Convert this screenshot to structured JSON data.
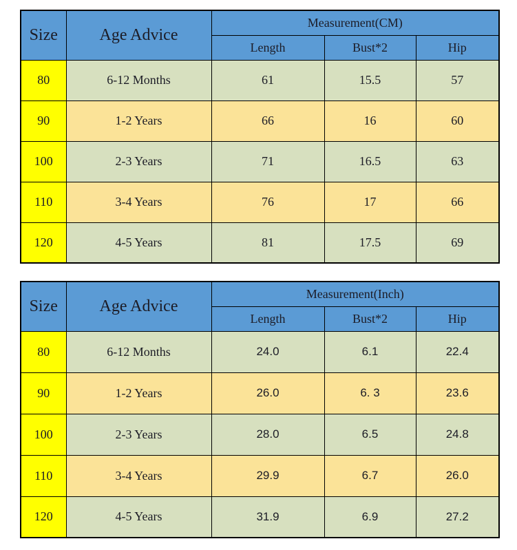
{
  "colors": {
    "header_blue": "#5b9bd5",
    "row_green": "#d7e0bf",
    "row_yellow": "#fbe398",
    "size_column_yellow": "#ffff00",
    "border_black": "#000000",
    "text_dark": "#1c1c26",
    "background": "#ffffff"
  },
  "tables": [
    {
      "size_header": "Size",
      "age_header": "Age Advice",
      "measurement_label": "Measurement(CM)",
      "columns": [
        "Length",
        "Bust*2",
        "Hip"
      ],
      "rows": [
        {
          "size": "80",
          "age": "6-12 Months",
          "length": "61",
          "bust": "15.5",
          "hip": "57"
        },
        {
          "size": "90",
          "age": "1-2 Years",
          "length": "66",
          "bust": "16",
          "hip": "60"
        },
        {
          "size": "100",
          "age": "2-3 Years",
          "length": "71",
          "bust": "16.5",
          "hip": "63"
        },
        {
          "size": "110",
          "age": "3-4 Years",
          "length": "76",
          "bust": "17",
          "hip": "66"
        },
        {
          "size": "120",
          "age": "4-5 Years",
          "length": "81",
          "bust": "17.5",
          "hip": "69"
        }
      ]
    },
    {
      "size_header": "Size",
      "age_header": "Age Advice",
      "measurement_label": "Measurement(Inch)",
      "columns": [
        "Length",
        "Bust*2",
        "Hip"
      ],
      "rows": [
        {
          "size": "80",
          "age": "6-12 Months",
          "length": "24.0",
          "bust": "6.1",
          "hip": "22.4"
        },
        {
          "size": "90",
          "age": "1-2 Years",
          "length": "26.0",
          "bust": "6. 3",
          "hip": "23.6"
        },
        {
          "size": "100",
          "age": "2-3 Years",
          "length": "28.0",
          "bust": "6.5",
          "hip": "24.8"
        },
        {
          "size": "110",
          "age": "3-4 Years",
          "length": "29.9",
          "bust": "6.7",
          "hip": "26.0"
        },
        {
          "size": "120",
          "age": "4-5 Years",
          "length": "31.9",
          "bust": "6.9",
          "hip": "27.2"
        }
      ]
    }
  ],
  "chart_data": [
    {
      "type": "table",
      "title": "Measurement(CM)",
      "columns": [
        "Size",
        "Age Advice",
        "Length",
        "Bust*2",
        "Hip"
      ],
      "rows": [
        [
          "80",
          "6-12 Months",
          61,
          15.5,
          57
        ],
        [
          "90",
          "1-2 Years",
          66,
          16,
          60
        ],
        [
          "100",
          "2-3 Years",
          71,
          16.5,
          63
        ],
        [
          "110",
          "3-4 Years",
          76,
          17,
          66
        ],
        [
          "120",
          "4-5 Years",
          81,
          17.5,
          69
        ]
      ]
    },
    {
      "type": "table",
      "title": "Measurement(Inch)",
      "columns": [
        "Size",
        "Age Advice",
        "Length",
        "Bust*2",
        "Hip"
      ],
      "rows": [
        [
          "80",
          "6-12 Months",
          24.0,
          6.1,
          22.4
        ],
        [
          "90",
          "1-2 Years",
          26.0,
          6.3,
          23.6
        ],
        [
          "100",
          "2-3 Years",
          28.0,
          6.5,
          24.8
        ],
        [
          "110",
          "3-4 Years",
          29.9,
          6.7,
          26.0
        ],
        [
          "120",
          "4-5 Years",
          31.9,
          6.9,
          27.2
        ]
      ]
    }
  ]
}
